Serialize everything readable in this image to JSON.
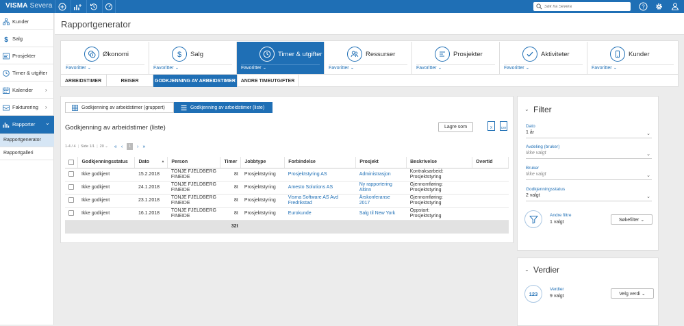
{
  "topbar": {
    "brand": "VISMA",
    "product": "Severa",
    "search_placeholder": "Søk fra Severa",
    "icons": [
      "plus-circle-icon",
      "chart-plus-icon",
      "history-icon",
      "timer-icon",
      "help-icon",
      "gear-icon",
      "user-icon"
    ]
  },
  "sidebar": {
    "items": [
      {
        "label": "Kunder",
        "icon": "org-icon"
      },
      {
        "label": "Salg",
        "icon": "dollar-icon"
      },
      {
        "label": "Prosjekter",
        "icon": "project-icon"
      },
      {
        "label": "Timer & utgifter",
        "icon": "clock-icon"
      },
      {
        "label": "Kalender",
        "icon": "calendar-icon",
        "chevron": "›"
      },
      {
        "label": "Fakturering",
        "icon": "invoice-icon",
        "chevron": "›"
      },
      {
        "label": "Rapporter",
        "icon": "bar-chart-icon",
        "chevron": "⌄"
      }
    ],
    "subitems": [
      "Rapportgenerator",
      "Rapportgalleri"
    ]
  },
  "page": {
    "title": "Rapportgenerator"
  },
  "categories": [
    {
      "label": "Økonomi",
      "fav": "Favoritter ⌄"
    },
    {
      "label": "Salg",
      "fav": "Favoritter ⌄"
    },
    {
      "label": "Timer & utgifter",
      "fav": "Favoritter ⌄"
    },
    {
      "label": "Ressurser",
      "fav": "Favoritter ⌄"
    },
    {
      "label": "Prosjekter",
      "fav": "Favoritter ⌄"
    },
    {
      "label": "Aktiviteter",
      "fav": "Favoritter ⌄"
    },
    {
      "label": "Kunder",
      "fav": "Favoritter ⌄"
    }
  ],
  "subtabs": [
    "ARBEIDSTIMER",
    "REISER",
    "GODKJENNING AV ARBEIDSTIMER",
    "ANDRE TIMEUTGIFTER"
  ],
  "report": {
    "toggles": [
      "Godkjenning av arbeidstimer (gruppert)",
      "Godkjenning av arbeidstimer (liste)"
    ],
    "title": "Godkjenning av arbeidstimer (liste)",
    "save_label": "Lagre som",
    "export_xlsx": "X",
    "export_csv": "csv",
    "pager": {
      "range": "1-4 / 4",
      "pages": "Side 1/1",
      "page_size": "20 ⌄",
      "first": "«",
      "prev": "‹",
      "current": "1",
      "next": "›",
      "last": "»"
    }
  },
  "table": {
    "columns": [
      "Godkjenningsstatus",
      "Dato",
      "Person",
      "Timer",
      "Jobbtype",
      "Forbindelse",
      "Prosjekt",
      "Beskrivelse",
      "Overtid"
    ],
    "sort_indicator": "▲",
    "rows": [
      {
        "status": "Ikke godkjent",
        "date": "15.2.2018",
        "person": [
          "TONJE FJELDBERG",
          "FINEIDE"
        ],
        "hours": "8t",
        "jobtype": "Prosjektstyring",
        "connection": [
          "Prosjektstyring AS"
        ],
        "project": [
          "Administrasjon"
        ],
        "description": [
          "Kontraksarbeid:",
          "Prosjektstyring"
        ],
        "overtime": ""
      },
      {
        "status": "Ikke godkjent",
        "date": "24.1.2018",
        "person": [
          "TONJE FJELDBERG",
          "FINEIDE"
        ],
        "hours": "8t",
        "jobtype": "Prosjektstyring",
        "connection": [
          "Amesto Solutions AS"
        ],
        "project": [
          "Ny rapportering",
          "Altinn"
        ],
        "description": [
          "Gjennomføring:",
          "Prosjektstyring"
        ],
        "overtime": ""
      },
      {
        "status": "Ikke godkjent",
        "date": "23.1.2018",
        "person": [
          "TONJE FJELDBERG",
          "FINEIDE"
        ],
        "hours": "8t",
        "jobtype": "Prosjektstyring",
        "connection": [
          "Visma Software AS Avd",
          "Fredrikstad"
        ],
        "project": [
          "Årskonferanse",
          "2017"
        ],
        "description": [
          "Gjennomføring:",
          "Prosjektstyring"
        ],
        "overtime": ""
      },
      {
        "status": "Ikke godkjent",
        "date": "16.1.2018",
        "person": [
          "TONJE FJELDBERG",
          "FINEIDE"
        ],
        "hours": "8t",
        "jobtype": "Prosjektstyring",
        "connection": [
          "Eurokunde"
        ],
        "project": [
          "Salg til New York"
        ],
        "description": [
          "Oppstart:",
          "Prosjektstyring"
        ],
        "overtime": ""
      }
    ],
    "total_hours": "32t"
  },
  "filter": {
    "title": "Filter",
    "fields": [
      {
        "label": "Dato",
        "value": "1 år",
        "placeholder": false
      },
      {
        "label": "Avdeling (bruker)",
        "value": "Ikke valgt",
        "placeholder": true
      },
      {
        "label": "Bruker",
        "value": "Ikke valgt",
        "placeholder": true
      },
      {
        "label": "Godkjenningsstatus",
        "value": "2 valgt",
        "placeholder": false
      }
    ],
    "other_filters_label": "Andre filtre",
    "other_filters_value": "1 valgt",
    "search_filter_button": "Søkefilter ⌄"
  },
  "values": {
    "title": "Verdier",
    "badge": "123",
    "label": "Verdier",
    "value": "9 valgt",
    "choose_button": "Velg verdi ⌄"
  },
  "colors": {
    "accent": "#1f6fb5",
    "background": "#ececec",
    "panel": "#ffffff",
    "total_row": "#e2e2e2"
  }
}
